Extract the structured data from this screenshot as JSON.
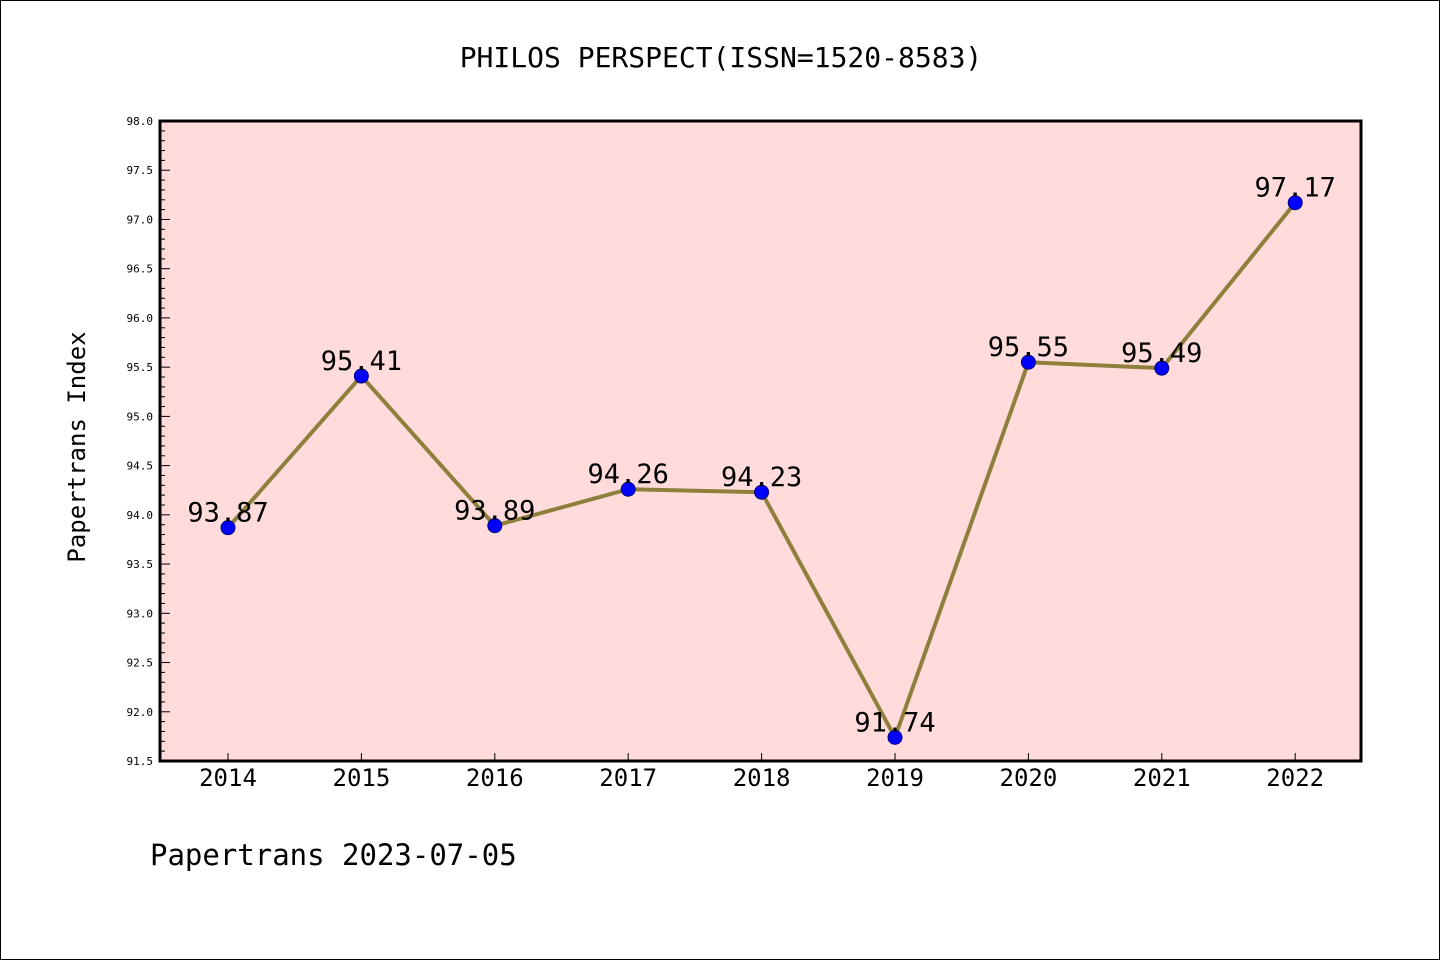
{
  "chart_data": {
    "type": "line",
    "title": "PHILOS PERSPECT(ISSN=1520-8583)",
    "xlabel": "",
    "ylabel": "Papertrans Index",
    "categories": [
      "2014",
      "2015",
      "2016",
      "2017",
      "2018",
      "2019",
      "2020",
      "2021",
      "2022"
    ],
    "series": [
      {
        "values": [
          93.87,
          95.41,
          93.89,
          94.26,
          94.23,
          91.74,
          95.55,
          95.49,
          97.17
        ],
        "data_labels": [
          "93.87",
          "95.41",
          "93.89",
          "94.26",
          "94.23",
          "91.74",
          "95.55",
          "95.49",
          "97.17"
        ],
        "line_color": "#8f7f3c",
        "marker_color": "#0000ff"
      }
    ],
    "ylim": [
      91.5,
      98.0
    ],
    "yticks": [
      "91.5",
      "92.0",
      "92.5",
      "93.0",
      "93.5",
      "94.0",
      "94.5",
      "95.0",
      "95.5",
      "96.0",
      "96.5",
      "97.0",
      "97.5",
      "98.0"
    ],
    "plot_background": "#ffdcdb",
    "grid": false,
    "legend": "none"
  },
  "footer": {
    "text": "Papertrans 2023-07-05"
  }
}
